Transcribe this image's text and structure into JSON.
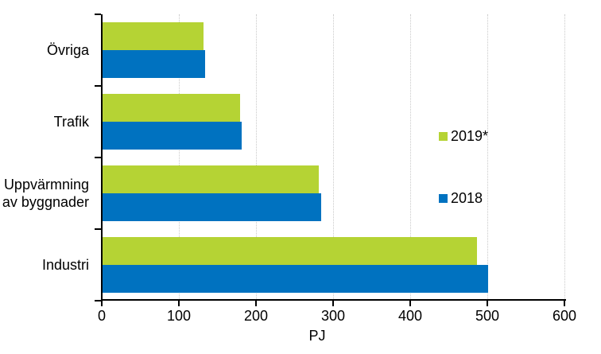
{
  "chart_data": {
    "type": "bar",
    "orientation": "horizontal",
    "title": "",
    "xlabel": "PJ",
    "ylabel": "",
    "unit": "PJ",
    "xlim": [
      0,
      600
    ],
    "xticks": [
      0,
      100,
      200,
      300,
      400,
      500,
      600
    ],
    "categories": [
      "Övriga",
      "Trafik",
      "Uppvärmning av byggnader",
      "Industri"
    ],
    "series": [
      {
        "name": "2019*",
        "color": "#b5d334",
        "values": [
          131,
          178,
          280,
          486
        ]
      },
      {
        "name": "2018",
        "color": "#0072c0",
        "values": [
          133,
          180,
          283,
          500
        ]
      }
    ],
    "legend_position": "right-middle",
    "grid": "vertical-dotted",
    "gridline_color": "#c9c9c9",
    "axis_color": "#000000",
    "background_color": "#ffffff"
  }
}
